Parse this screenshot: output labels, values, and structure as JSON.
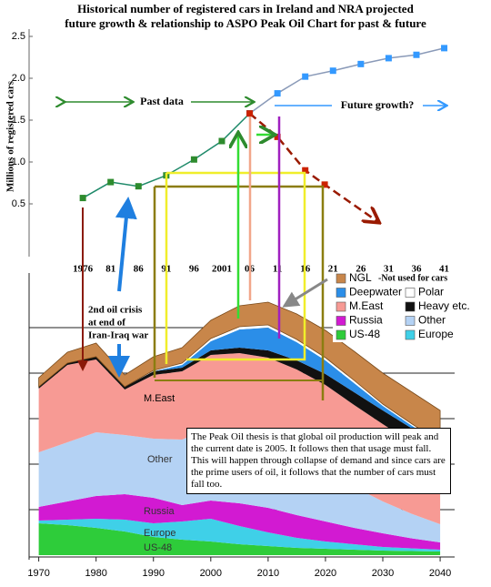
{
  "title_lines": [
    "Historical number of registered cars in Ireland and NRA projected",
    "future growth & relationship to ASPO Peak Oil Chart for past & future"
  ],
  "chart_data": [
    {
      "type": "line",
      "y_label": "Millions of registered cars",
      "xlim": [
        1966,
        2045
      ],
      "xticks": [
        1976,
        {
          "value": 1981,
          "label": "81"
        },
        {
          "value": 1986,
          "label": "86"
        },
        {
          "value": 1991,
          "label": "91"
        },
        {
          "value": 1996,
          "label": "96"
        },
        2001,
        {
          "value": 2006,
          "label": "06"
        },
        {
          "value": 2011,
          "label": "11"
        },
        {
          "value": 2016,
          "label": "16"
        },
        {
          "value": 2021,
          "label": "21"
        },
        {
          "value": 2026,
          "label": "26"
        },
        {
          "value": 2031,
          "label": "31"
        },
        {
          "value": 2036,
          "label": "36"
        },
        {
          "value": 2041,
          "label": "41"
        }
      ],
      "ylim": [
        0,
        2.5
      ],
      "yticks": [
        0.5,
        {
          "value": 1,
          "label": "1.0"
        },
        1.5,
        {
          "value": 2,
          "label": "2.0"
        },
        2.5
      ],
      "series": [
        {
          "name": "Past data",
          "color": "#1f8a6a",
          "marker_color": "#2e8b2e",
          "x": [
            1976,
            1981,
            1986,
            1991,
            1996,
            2001,
            2006
          ],
          "values": [
            0.57,
            0.76,
            0.71,
            0.84,
            1.03,
            1.25,
            1.58
          ]
        },
        {
          "name": "Future growth?",
          "color": "#8a9ab8",
          "marker_color": "#3399ff",
          "x": [
            2006,
            2011,
            2016,
            2021,
            2026,
            2031,
            2036,
            2041
          ],
          "values": [
            1.58,
            1.82,
            2.02,
            2.09,
            2.17,
            2.24,
            2.28,
            2.36
          ]
        },
        {
          "color": "#9a1a00",
          "marker_color": "#cc2200",
          "dashed": true,
          "x": [
            2006,
            2011,
            2016,
            2019.5,
            2029
          ],
          "values": [
            1.58,
            1.3,
            0.9,
            0.73,
            0.29
          ]
        }
      ]
    },
    {
      "type": "stacked_area",
      "x": [
        1970,
        1975,
        1980,
        1985,
        1990,
        1995,
        2000,
        2005,
        2010,
        2015,
        2020,
        2025,
        2030,
        2035,
        2040
      ],
      "xlim": [
        1968,
        2043
      ],
      "xticks": [
        1970,
        1980,
        1990,
        2000,
        2010,
        2020,
        2030,
        2040
      ],
      "ylim": [
        0,
        30
      ],
      "yticks": [
        5,
        10,
        15,
        20,
        25
      ],
      "grid": true,
      "legend_note": "-Not used for cars",
      "series": [
        {
          "name": "US-48",
          "color": "#2ecc3a",
          "values": [
            3.5,
            3.3,
            3.0,
            2.6,
            2.0,
            1.7,
            1.5,
            1.2,
            1.0,
            0.8,
            0.7,
            0.6,
            0.5,
            0.45,
            0.4
          ]
        },
        {
          "name": "Europe",
          "color": "#3fd0e8",
          "values": [
            0.3,
            0.6,
            1.0,
            1.3,
            1.5,
            2.0,
            2.5,
            2.0,
            1.5,
            1.1,
            0.8,
            0.6,
            0.4,
            0.3,
            0.2
          ]
        },
        {
          "name": "Russia",
          "color": "#d21ad2",
          "values": [
            1.5,
            2.0,
            2.5,
            2.8,
            2.8,
            1.8,
            2.0,
            2.5,
            2.7,
            2.5,
            2.2,
            1.8,
            1.5,
            1.1,
            0.8
          ]
        },
        {
          "name": "Other",
          "color": "#b4d2f4",
          "values": [
            6.0,
            6.5,
            7.0,
            6.5,
            6.5,
            7.2,
            8.0,
            8.0,
            7.5,
            6.5,
            5.5,
            4.5,
            3.5,
            2.7,
            2.0
          ]
        },
        {
          "name": "M.East",
          "color": "#f79a94",
          "values": [
            7.0,
            8.5,
            8.0,
            5.0,
            7.0,
            7.5,
            8.0,
            8.5,
            9.0,
            9.5,
            9.5,
            9.0,
            8.5,
            7.8,
            7.0
          ]
        },
        {
          "name": "Heavy etc.",
          "color": "#111111",
          "values": [
            0.2,
            0.2,
            0.3,
            0.3,
            0.4,
            0.4,
            0.5,
            0.6,
            0.8,
            1.0,
            1.2,
            1.4,
            1.5,
            1.6,
            1.6
          ]
        },
        {
          "name": "Deepwater",
          "color": "#2b8ee8",
          "values": [
            0,
            0,
            0,
            0,
            0,
            0.3,
            1.0,
            2.0,
            2.5,
            2.0,
            1.5,
            1.0,
            0.5,
            0.3,
            0.2
          ]
        },
        {
          "name": "Polar",
          "color": "#ffffff",
          "values": [
            0,
            0,
            0,
            0,
            0.1,
            0.2,
            0.3,
            0.3,
            0.3,
            0.3,
            0.3,
            0.3,
            0.2,
            0.2,
            0.2
          ]
        },
        {
          "name": "NGL",
          "color": "#c8864a",
          "values": [
            1.0,
            1.2,
            1.5,
            1.3,
            1.5,
            1.7,
            2.0,
            2.3,
            2.5,
            2.8,
            3.0,
            3.2,
            3.4,
            3.5,
            3.5
          ]
        }
      ]
    }
  ],
  "annotations": {
    "oil_crisis": [
      "2nd oil crisis",
      "at end of",
      "Iran-Iraq war"
    ],
    "peak_oil_note": "The Peak Oil thesis is that global oil production will peak and the current date is 2005. It follows then that usage must fall. This will happen through collapse of demand and since cars are the prime users of oil, it follows that the number of cars must fall too."
  }
}
